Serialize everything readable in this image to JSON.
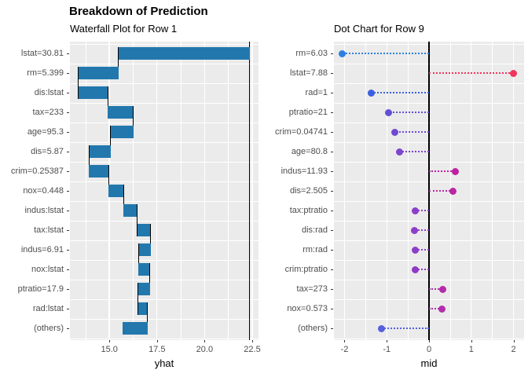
{
  "title": "Breakdown of Prediction",
  "colors": {
    "bar_fill": "#2278AD",
    "panel_bg": "#EBEBEB",
    "grid": "#FFFFFF",
    "axis_text": "#4D4D4D",
    "ref_line": "#000000"
  },
  "chart_data": [
    {
      "type": "bar",
      "variant": "waterfall",
      "title": "Waterfall Plot for Row 1",
      "xlabel": "yhat",
      "x_ticks": [
        "15.0",
        "17.5",
        "20.0",
        "22.5"
      ],
      "x_tick_values": [
        15.0,
        17.5,
        20.0,
        22.5
      ],
      "x_minor_values": [
        13.75,
        16.25,
        18.75,
        21.25
      ],
      "xlim": [
        12.93,
        22.83
      ],
      "intercept_line": 22.36,
      "grid": true,
      "legend": "none",
      "rows": [
        {
          "label": "lstat=30.81",
          "from": 22.36,
          "to": 15.48
        },
        {
          "label": "rm=5.399",
          "from": 15.48,
          "to": 13.38
        },
        {
          "label": "dis:lstat",
          "from": 13.38,
          "to": 14.92
        },
        {
          "label": "tax=233",
          "from": 14.92,
          "to": 16.26
        },
        {
          "label": "age=95.3",
          "from": 16.26,
          "to": 15.06
        },
        {
          "label": "dis=5.87",
          "from": 15.06,
          "to": 13.94
        },
        {
          "label": "crim=0.25387",
          "from": 13.94,
          "to": 14.96
        },
        {
          "label": "nox=0.448",
          "from": 14.96,
          "to": 15.74
        },
        {
          "label": "indus:lstat",
          "from": 15.74,
          "to": 16.46
        },
        {
          "label": "tax:lstat",
          "from": 16.46,
          "to": 17.17
        },
        {
          "label": "indus=6.91",
          "from": 17.17,
          "to": 16.53
        },
        {
          "label": "nox:lstat",
          "from": 16.53,
          "to": 17.12
        },
        {
          "label": "ptratio=17.9",
          "from": 17.12,
          "to": 16.5
        },
        {
          "label": "rad:lstat",
          "from": 16.5,
          "to": 17.01
        },
        {
          "label": "(others)",
          "from": 17.01,
          "to": 15.68
        }
      ]
    },
    {
      "type": "scatter",
      "variant": "dot-chart",
      "title": "Dot Chart for Row 9",
      "xlabel": "mid",
      "x_ticks": [
        "-2",
        "-1",
        "0",
        "1",
        "2"
      ],
      "x_tick_values": [
        -2,
        -1,
        0,
        1,
        2
      ],
      "x_minor_values": [
        -1.5,
        -0.5,
        0.5,
        1.5
      ],
      "xlim": [
        -2.25,
        2.25
      ],
      "zero_line": 0,
      "grid": true,
      "legend": "none",
      "rows": [
        {
          "label": "rm=6.03",
          "value": -2.05,
          "color": "#2E7FE0"
        },
        {
          "label": "lstat=7.88",
          "value": 1.99,
          "color": "#F0355F"
        },
        {
          "label": "rad=1",
          "value": -1.37,
          "color": "#3B5FE0"
        },
        {
          "label": "ptratio=21",
          "value": -0.95,
          "color": "#6150D6"
        },
        {
          "label": "crim=0.04741",
          "value": -0.8,
          "color": "#6F49D2"
        },
        {
          "label": "age=80.8",
          "value": -0.69,
          "color": "#7D44CE"
        },
        {
          "label": "indus=11.93",
          "value": 0.62,
          "color": "#BE21A0"
        },
        {
          "label": "dis=2.505",
          "value": 0.57,
          "color": "#BB26A4"
        },
        {
          "label": "tax:ptratio",
          "value": -0.33,
          "color": "#8C3EC8"
        },
        {
          "label": "dis:rad",
          "value": -0.34,
          "color": "#8C3EC8"
        },
        {
          "label": "rm:rad",
          "value": -0.33,
          "color": "#8C3EC8"
        },
        {
          "label": "crim:ptratio",
          "value": -0.32,
          "color": "#9139C6"
        },
        {
          "label": "tax=273",
          "value": 0.32,
          "color": "#B32BAB"
        },
        {
          "label": "nox=0.573",
          "value": 0.3,
          "color": "#B12FAD"
        },
        {
          "label": "(others)",
          "value": -1.12,
          "color": "#5661DE"
        }
      ]
    }
  ]
}
